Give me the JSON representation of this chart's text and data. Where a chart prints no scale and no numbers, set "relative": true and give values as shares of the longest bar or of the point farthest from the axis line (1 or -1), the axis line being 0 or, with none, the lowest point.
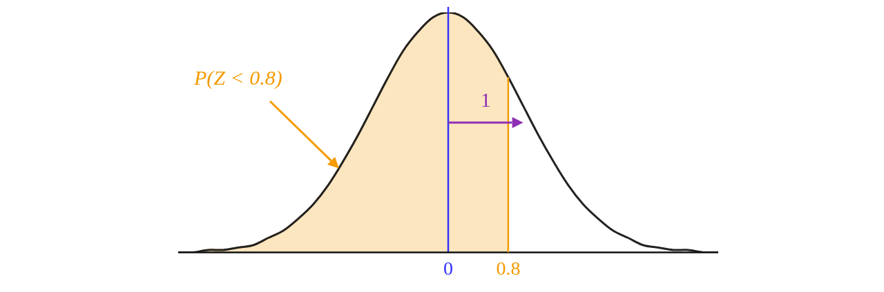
{
  "chart_data": {
    "type": "line",
    "relative": true,
    "xlim": [
      -3.6,
      3.6
    ],
    "xticks": [
      0,
      0.8
    ],
    "tick_labels": "x",
    "grid": false,
    "legend": false,
    "marker": "none",
    "x": [
      -3.6,
      -3.4,
      -3.2,
      -3.0,
      -2.8,
      -2.6,
      -2.4,
      -2.2,
      -2.0,
      -1.8,
      -1.6,
      -1.4,
      -1.2,
      -1.0,
      -0.8,
      -0.6,
      -0.4,
      -0.2,
      0,
      0.2,
      0.4,
      0.6,
      0.8,
      1.0,
      1.2,
      1.4,
      1.6,
      1.8,
      2.0,
      2.2,
      2.4,
      2.6,
      2.8,
      3.0,
      3.2,
      3.4,
      3.6
    ],
    "series": [
      {
        "type": "area",
        "color": "#f59b00",
        "x": [
          -3.6,
          -3.4,
          -3.2,
          -3.0,
          -2.8,
          -2.6,
          -2.4,
          -2.2,
          -2.0,
          -1.8,
          -1.6,
          -1.4,
          -1.2,
          -1.0,
          -0.8,
          -0.6,
          -0.4,
          -0.2,
          0,
          0.2,
          0.4,
          0.6,
          0.8
        ],
        "values": [
          0.0,
          0.0,
          0.01,
          0.01,
          0.02,
          0.03,
          0.06,
          0.09,
          0.14,
          0.2,
          0.28,
          0.38,
          0.49,
          0.61,
          0.73,
          0.84,
          0.92,
          0.98,
          1,
          0.98,
          0.92,
          0.84,
          0.73
        ]
      },
      {
        "color": "#222222",
        "values": [
          0.0,
          0.0,
          0.01,
          0.01,
          0.02,
          0.03,
          0.06,
          0.09,
          0.14,
          0.2,
          0.28,
          0.38,
          0.49,
          0.61,
          0.73,
          0.84,
          0.92,
          0.98,
          1,
          0.98,
          0.92,
          0.84,
          0.73,
          0.61,
          0.49,
          0.38,
          0.28,
          0.2,
          0.14,
          0.09,
          0.06,
          0.03,
          0.02,
          0.01,
          0.01,
          0.0,
          0.0
        ]
      }
    ],
    "ref_lines": [
      {
        "axis": "x",
        "value": 0,
        "color": "#3333ff"
      }
    ],
    "annotations": [
      "P(Z < 0.8)",
      "1"
    ]
  }
}
